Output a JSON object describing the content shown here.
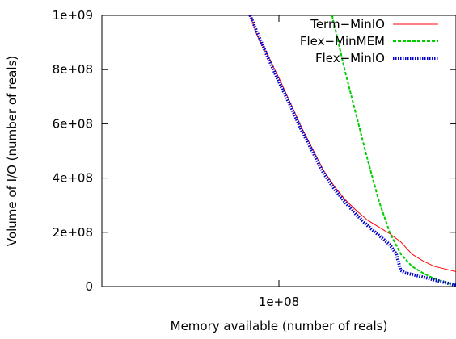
{
  "chart_data": {
    "type": "line",
    "title": "",
    "xlabel": "Memory available (number of reals)",
    "ylabel": "Volume of I/O (number of reals)",
    "xlim": [
      20000000,
      180000000
    ],
    "ylim": [
      0,
      1000000000
    ],
    "xticks": [
      {
        "value": 100000000,
        "label": "1e+08"
      }
    ],
    "yticks": [
      {
        "value": 0,
        "label": "0"
      },
      {
        "value": 200000000,
        "label": "2e+08"
      },
      {
        "value": 400000000,
        "label": "4e+08"
      },
      {
        "value": 600000000,
        "label": "6e+08"
      },
      {
        "value": 800000000,
        "label": "8e+08"
      },
      {
        "value": 1000000000,
        "label": "1e+09"
      }
    ],
    "grid": false,
    "legend": "top-right",
    "series": [
      {
        "name": "Term−MinIO",
        "color": "#ff0000",
        "style": "solid",
        "x": [
          87000000,
          90000000,
          95000000,
          100000000,
          105000000,
          110000000,
          115000000,
          120000000,
          125000000,
          130000000,
          135000000,
          140000000,
          145000000,
          150000000,
          155000000,
          160000000,
          165000000,
          170000000,
          175000000,
          180000000
        ],
        "y": [
          1000000000,
          930000000,
          850000000,
          770000000,
          680000000,
          590000000,
          510000000,
          430000000,
          370000000,
          320000000,
          280000000,
          245000000,
          220000000,
          195000000,
          165000000,
          120000000,
          95000000,
          75000000,
          65000000,
          55000000
        ]
      },
      {
        "name": "Flex−MinMEM",
        "color": "#00cc00",
        "style": "dashed",
        "x": [
          124000000,
          130000000,
          135000000,
          140000000,
          145000000,
          150000000,
          155000000,
          160000000,
          165000000,
          170000000,
          175000000,
          180000000
        ],
        "y": [
          1000000000,
          790000000,
          630000000,
          470000000,
          320000000,
          200000000,
          120000000,
          75000000,
          50000000,
          30000000,
          15000000,
          5000000
        ]
      },
      {
        "name": "Flex−MinIO",
        "color": "#0000cc",
        "style": "dotted",
        "x": [
          87000000,
          90000000,
          95000000,
          100000000,
          105000000,
          110000000,
          115000000,
          120000000,
          125000000,
          130000000,
          135000000,
          140000000,
          145000000,
          150000000,
          153000000,
          155000000,
          157000000,
          160000000,
          165000000,
          170000000,
          175000000,
          180000000
        ],
        "y": [
          1000000000,
          940000000,
          845000000,
          755000000,
          670000000,
          580000000,
          500000000,
          420000000,
          360000000,
          310000000,
          265000000,
          225000000,
          190000000,
          155000000,
          120000000,
          60000000,
          50000000,
          45000000,
          35000000,
          25000000,
          15000000,
          5000000
        ]
      }
    ]
  }
}
